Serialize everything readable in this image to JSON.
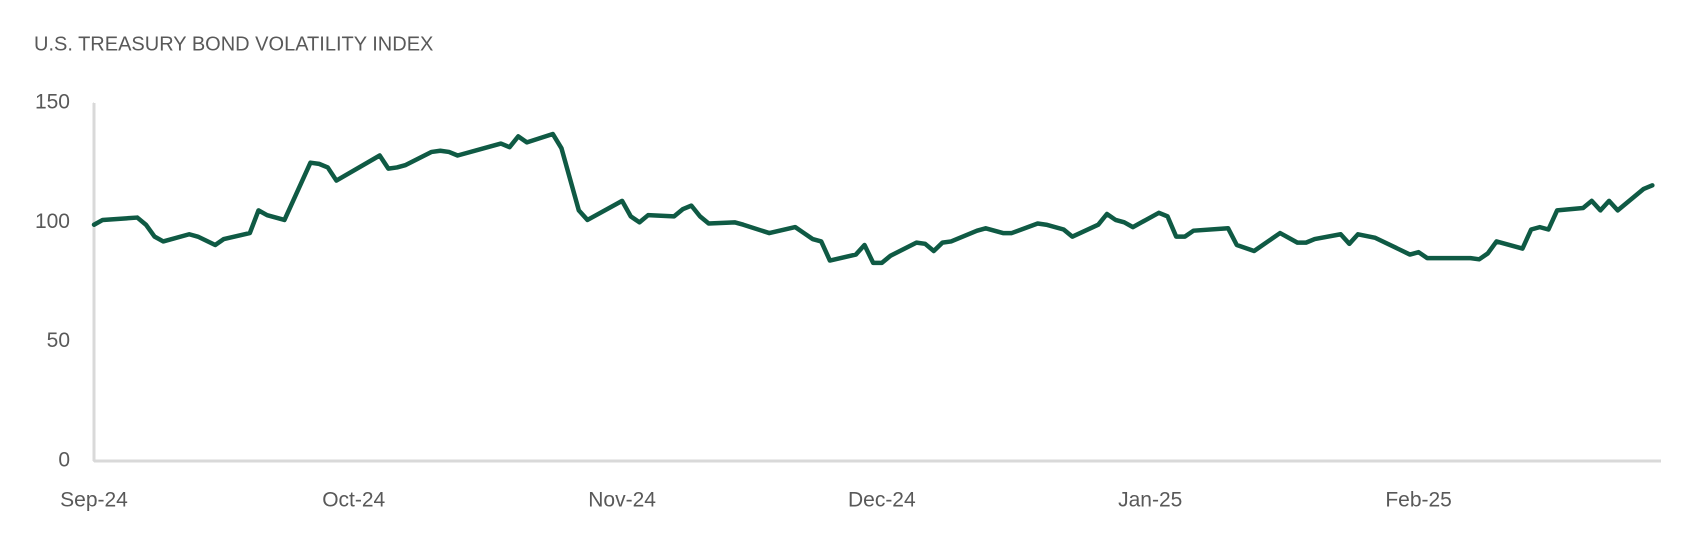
{
  "chart_data": {
    "type": "line",
    "title": "U.S. TREASURY BOND VOLATILITY INDEX",
    "series": [
      {
        "name": "U.S. Treasury Bond Volatility Index",
        "color": "#0f5a44",
        "x": [
          0,
          1,
          5,
          6,
          7,
          8,
          11,
          12,
          14,
          15,
          18,
          19,
          20,
          22,
          25,
          26,
          27,
          28,
          33,
          34,
          35,
          36,
          39,
          40,
          41,
          42,
          46,
          47,
          48,
          49,
          50,
          53,
          54,
          56,
          57,
          61,
          62,
          63,
          64,
          67,
          68,
          69,
          70,
          71,
          74,
          75,
          78,
          81,
          82,
          83,
          84,
          85,
          88,
          89,
          90,
          91,
          92,
          95,
          96,
          97,
          98,
          99,
          102,
          103,
          105,
          106,
          109,
          110,
          112,
          113,
          116,
          117,
          118,
          119,
          120,
          123,
          124,
          125,
          126,
          127,
          131,
          132,
          134,
          137,
          139,
          140,
          141,
          144,
          145,
          146,
          148,
          152,
          153,
          154,
          159,
          160,
          161,
          162,
          165,
          166,
          167,
          168,
          169,
          172,
          173,
          174,
          175,
          176,
          179,
          180
        ],
        "values": [
          99,
          101,
          102,
          99,
          94,
          92,
          95,
          94,
          90.5,
          93,
          95.5,
          105,
          103,
          101,
          125,
          124.5,
          123,
          117.5,
          128,
          122.5,
          123,
          124,
          129.5,
          130,
          129.5,
          128,
          132,
          133,
          131.5,
          136,
          133.5,
          137,
          131,
          105,
          101,
          109,
          102.5,
          100,
          103,
          102.5,
          105.5,
          107,
          102.5,
          99.5,
          100,
          99,
          95.5,
          98,
          95.5,
          93,
          92,
          84,
          86.5,
          90.5,
          83,
          83,
          86,
          91.5,
          91,
          88,
          91.5,
          92,
          96.5,
          97.5,
          95.5,
          95.5,
          99.5,
          99,
          97,
          94,
          99,
          103.5,
          101,
          100,
          98,
          104,
          102.5,
          94,
          94,
          96.5,
          97.5,
          90.5,
          88,
          95.5,
          91.5,
          91.5,
          93,
          95,
          91,
          95,
          93.5,
          86.5,
          87.5,
          85,
          85,
          84.5,
          87,
          92,
          89,
          97,
          98,
          97,
          105,
          106,
          109,
          105,
          109,
          105,
          114,
          115.5
        ]
      }
    ],
    "xlim": [
      0,
      181
    ],
    "xticks": [
      {
        "value": 0,
        "label": "Sep-24"
      },
      {
        "value": 30,
        "label": "Oct-24"
      },
      {
        "value": 61,
        "label": "Nov-24"
      },
      {
        "value": 91,
        "label": "Dec-24"
      },
      {
        "value": 122,
        "label": "Jan-25"
      },
      {
        "value": 153,
        "label": "Feb-25"
      }
    ],
    "ylim": [
      0,
      150
    ],
    "yticks": [
      0,
      50,
      100,
      150
    ],
    "grid": false
  }
}
